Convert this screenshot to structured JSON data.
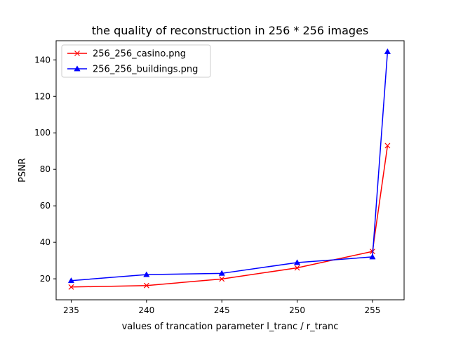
{
  "chart_data": {
    "type": "line",
    "title": "the quality of reconstruction in 256 * 256 images",
    "xlabel": "values of trancation parameter l_tranc / r_tranc",
    "ylabel": "PSNR",
    "xlim": [
      234.0,
      257.1
    ],
    "ylim": [
      8.5,
      150.5
    ],
    "xticks": [
      235,
      240,
      245,
      250,
      255
    ],
    "yticks": [
      20,
      40,
      60,
      80,
      100,
      120,
      140
    ],
    "grid": false,
    "legend_position": "upper-left",
    "x": [
      235,
      240,
      245,
      250,
      255,
      256
    ],
    "series": [
      {
        "name": "256_256_casino.png",
        "color": "#ff0000",
        "marker": "x",
        "values": [
          15.5,
          16.3,
          19.9,
          26.0,
          35.0,
          93.0
        ]
      },
      {
        "name": "256_256_buildings.png",
        "color": "#0000ff",
        "marker": "triangle-up",
        "values": [
          19.0,
          22.3,
          23.0,
          28.9,
          32.0,
          144.5
        ]
      }
    ]
  }
}
